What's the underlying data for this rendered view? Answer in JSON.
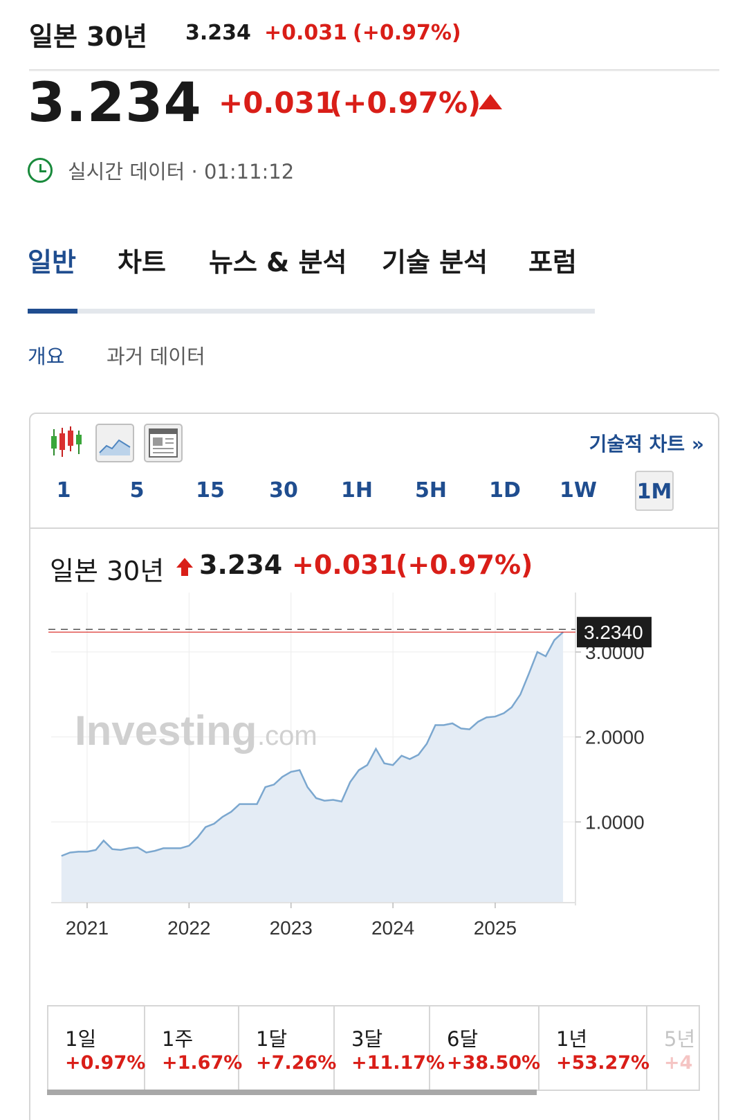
{
  "instrument": {
    "name": "일본 30년",
    "price": "3.234",
    "change": "+0.031",
    "change_pct": "(+0.97%)",
    "status": "실시간 데이터 · 01:11:12"
  },
  "tabs": [
    {
      "label": "일반",
      "active": true
    },
    {
      "label": "차트",
      "active": false
    },
    {
      "label": "뉴스 & 분석",
      "active": false
    },
    {
      "label": "기술 분석",
      "active": false
    },
    {
      "label": "포럼",
      "active": false
    }
  ],
  "subtabs": [
    {
      "label": "개요",
      "active": true
    },
    {
      "label": "과거 데이터",
      "active": false
    }
  ],
  "widget": {
    "tools": [
      "candlestick-icon",
      "area-chart-icon",
      "table-icon"
    ],
    "technical_link": "기술적 차트 »",
    "periods": [
      "1",
      "5",
      "15",
      "30",
      "1H",
      "5H",
      "1D",
      "1W",
      "1M"
    ],
    "selected_period": "1M",
    "watermark_main": "Investing",
    "watermark_suffix": ".com",
    "current_label": "3.2340"
  },
  "chart_data": {
    "type": "area",
    "title": "일본 30년",
    "x_ticks": [
      "2021",
      "2022",
      "2023",
      "2024",
      "2025"
    ],
    "y_ticks": [
      "1.0000",
      "2.0000",
      "3.0000"
    ],
    "ylim": [
      0.05,
      3.7
    ],
    "grid": true,
    "last_value": 3.234,
    "x": [
      "2020-10",
      "2020-11",
      "2020-12",
      "2021-01",
      "2021-02",
      "2021-03",
      "2021-04",
      "2021-05",
      "2021-06",
      "2021-07",
      "2021-08",
      "2021-09",
      "2021-10",
      "2021-11",
      "2021-12",
      "2022-01",
      "2022-02",
      "2022-03",
      "2022-04",
      "2022-05",
      "2022-06",
      "2022-07",
      "2022-08",
      "2022-09",
      "2022-10",
      "2022-11",
      "2022-12",
      "2023-01",
      "2023-02",
      "2023-03",
      "2023-04",
      "2023-05",
      "2023-06",
      "2023-07",
      "2023-08",
      "2023-09",
      "2023-10",
      "2023-11",
      "2023-12",
      "2024-01",
      "2024-02",
      "2024-03",
      "2024-04",
      "2024-05",
      "2024-06",
      "2024-07",
      "2024-08",
      "2024-09",
      "2024-10",
      "2024-11",
      "2024-12",
      "2025-01",
      "2025-02",
      "2025-03",
      "2025-04",
      "2025-05",
      "2025-06",
      "2025-07",
      "2025-08",
      "2025-09"
    ],
    "values": [
      0.6,
      0.64,
      0.65,
      0.65,
      0.67,
      0.78,
      0.68,
      0.67,
      0.69,
      0.7,
      0.64,
      0.66,
      0.69,
      0.69,
      0.69,
      0.72,
      0.82,
      0.94,
      0.98,
      1.06,
      1.12,
      1.21,
      1.21,
      1.21,
      1.41,
      1.44,
      1.53,
      1.59,
      1.61,
      1.41,
      1.28,
      1.25,
      1.26,
      1.24,
      1.47,
      1.61,
      1.67,
      1.86,
      1.69,
      1.67,
      1.78,
      1.74,
      1.79,
      1.92,
      2.14,
      2.14,
      2.16,
      2.1,
      2.09,
      2.18,
      2.23,
      2.24,
      2.28,
      2.35,
      2.5,
      2.74,
      3.0,
      2.95,
      3.14,
      3.234
    ]
  },
  "performance": [
    {
      "label": "1일",
      "value": "+0.97%"
    },
    {
      "label": "1주",
      "value": "+1.67%"
    },
    {
      "label": "1달",
      "value": "+7.26%"
    },
    {
      "label": "3달",
      "value": "+11.17%"
    },
    {
      "label": "6달",
      "value": "+38.50%"
    },
    {
      "label": "1년",
      "value": "+53.27%"
    },
    {
      "label": "5년",
      "value": "+4"
    }
  ],
  "colors": {
    "accent": "#1f4d8f",
    "negative_red": "#d91e18",
    "realtime_green": "#198a3c",
    "area_fill": "#e4ecf5",
    "area_line": "#7ba7cf"
  }
}
